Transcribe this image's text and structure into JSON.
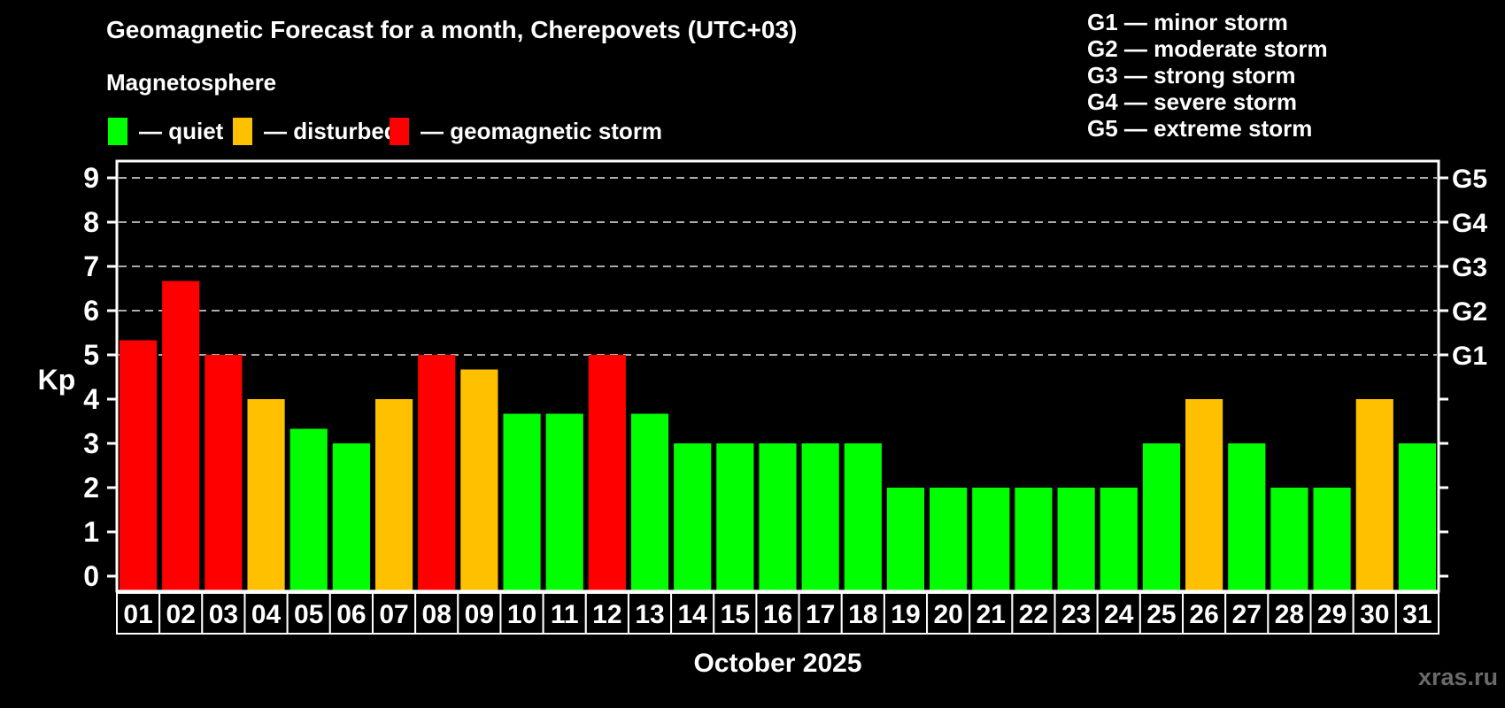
{
  "header": {
    "title": "Geomagnetic Forecast for a month, Cherepovets (UTC+03)",
    "subtitle": "Magnetosphere"
  },
  "legend": {
    "items": [
      {
        "key": "quiet",
        "label": "— quiet",
        "color": "#00ff00"
      },
      {
        "key": "disturbed",
        "label": "— disturbed",
        "color": "#ffc000"
      },
      {
        "key": "storm",
        "label": "— geomagnetic storm",
        "color": "#ff0000"
      }
    ]
  },
  "g_scale_legend": {
    "separator": "—",
    "items": [
      {
        "code": "G1",
        "label": "minor storm"
      },
      {
        "code": "G2",
        "label": "moderate storm"
      },
      {
        "code": "G3",
        "label": "strong storm"
      },
      {
        "code": "G4",
        "label": "severe storm"
      },
      {
        "code": "G5",
        "label": "extreme storm"
      }
    ]
  },
  "chart_data": {
    "type": "bar",
    "title": "Geomagnetic Forecast for a month, Cherepovets (UTC+03)",
    "xlabel": "October 2025",
    "ylabel": "Kp",
    "categories": [
      "01",
      "02",
      "03",
      "04",
      "05",
      "06",
      "07",
      "08",
      "09",
      "10",
      "11",
      "12",
      "13",
      "14",
      "15",
      "16",
      "17",
      "18",
      "19",
      "20",
      "21",
      "22",
      "23",
      "24",
      "25",
      "26",
      "27",
      "28",
      "29",
      "30",
      "31"
    ],
    "values": [
      5.33,
      6.67,
      5.0,
      4.0,
      3.33,
      3.0,
      4.0,
      5.0,
      4.67,
      3.67,
      3.67,
      5.0,
      3.67,
      3.0,
      3.0,
      3.0,
      3.0,
      3.0,
      2.0,
      2.0,
      2.0,
      2.0,
      2.0,
      2.0,
      3.0,
      4.0,
      3.0,
      2.0,
      2.0,
      4.0,
      3.0
    ],
    "statuses": [
      "storm",
      "storm",
      "storm",
      "disturbed",
      "quiet",
      "quiet",
      "disturbed",
      "storm",
      "disturbed",
      "quiet",
      "quiet",
      "storm",
      "quiet",
      "quiet",
      "quiet",
      "quiet",
      "quiet",
      "quiet",
      "quiet",
      "quiet",
      "quiet",
      "quiet",
      "quiet",
      "quiet",
      "quiet",
      "disturbed",
      "quiet",
      "quiet",
      "quiet",
      "disturbed",
      "quiet"
    ],
    "colors": {
      "quiet": "#00ff00",
      "disturbed": "#ffc000",
      "storm": "#ff0000"
    },
    "yticks": [
      0,
      1,
      2,
      3,
      4,
      5,
      6,
      7,
      8,
      9
    ],
    "ylim": [
      -0.35,
      9.4
    ],
    "gridlines_at": [
      5,
      6,
      7,
      8,
      9
    ],
    "grid_style": "dashed gray horizontal lines at storm levels only",
    "right_axis_labels": [
      {
        "value": 5,
        "label": "G1"
      },
      {
        "value": 6,
        "label": "G2"
      },
      {
        "value": 7,
        "label": "G3"
      },
      {
        "value": 8,
        "label": "G4"
      },
      {
        "value": 9,
        "label": "G5"
      }
    ],
    "legend_position": "top-left and top-right outside plot"
  },
  "watermark": "xras.ru"
}
